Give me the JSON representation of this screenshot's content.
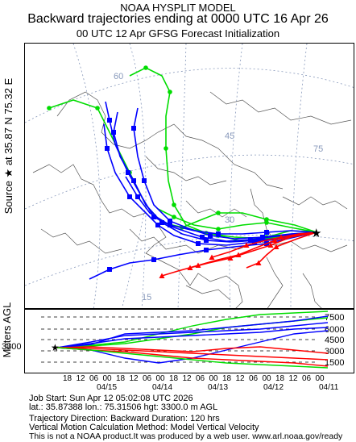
{
  "header": {
    "line1": "NOAA HYSPLIT MODEL",
    "line2": "Backward trajectories ending at 0000 UTC 16 Apr 26",
    "line3": "00 UTC 12 Apr    GFSG  Forecast Initialization"
  },
  "side_label": "Source ★ at   35.87 N   75.32 E",
  "vertical_label": "Meters AGL",
  "map": {
    "lat_labels": [
      "60",
      "45",
      "30",
      "15"
    ],
    "lon_labels": [
      "75"
    ],
    "source_marker": "star-icon",
    "colors": {
      "red": "#ff0000",
      "blue": "#0000ff",
      "green": "#00dd00",
      "map_lines": "#555555",
      "grid": "#8899bb"
    }
  },
  "vertical": {
    "start_height": "3300",
    "height_labels": [
      "7500",
      "6000",
      "4500",
      "3000",
      "1500"
    ],
    "hour_ticks": [
      "18",
      "12",
      "06",
      "00",
      "18",
      "12",
      "06",
      "00",
      "18",
      "12",
      "06",
      "00",
      "18",
      "12",
      "06",
      "00",
      "18",
      "12",
      "06",
      "00"
    ],
    "date_ticks": [
      "04/15",
      "04/14",
      "04/13",
      "04/12",
      "04/11"
    ]
  },
  "info": {
    "line1": "Job Start: Sun Apr 12 05:02:08 UTC 2026",
    "line2": "lat.: 35.87388   lon.: 75.31506    hgt: 3300.0 m AGL",
    "line3": "Trajectory Direction: Backward        Duration: 120 hrs",
    "line4": "Vertical Motion Calculation Method: Model Vertical Velocity",
    "line5": "This is not a NOAA product.It was produced by a web user. www.arl.noaa.gov/ready"
  }
}
